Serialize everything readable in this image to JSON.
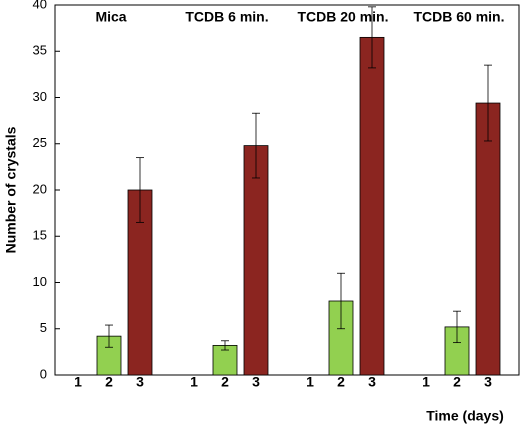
{
  "chart_data": {
    "type": "bar",
    "groups": [
      "Mica",
      "TCDB 6 min.",
      "TCDB 20 min.",
      "TCDB 60 min."
    ],
    "series": [
      {
        "name": "1",
        "values": [
          null,
          null,
          null,
          null
        ],
        "errors": [
          null,
          null,
          null,
          null
        ]
      },
      {
        "name": "2",
        "color": "#92d050",
        "values": [
          4.2,
          3.2,
          8,
          5.2
        ],
        "errors": [
          1.2,
          0.5,
          3,
          1.7
        ]
      },
      {
        "name": "3",
        "color": "#8b2520",
        "values": [
          20,
          24.8,
          36.5,
          29.4
        ],
        "errors": [
          3.5,
          3.5,
          3.3,
          4.1
        ]
      }
    ],
    "xlabel": "Time (days)",
    "ylabel": "Number of crystals",
    "ylim": [
      0,
      40
    ],
    "yticks": [
      0,
      5,
      10,
      15,
      20,
      25,
      30,
      35,
      40
    ]
  }
}
